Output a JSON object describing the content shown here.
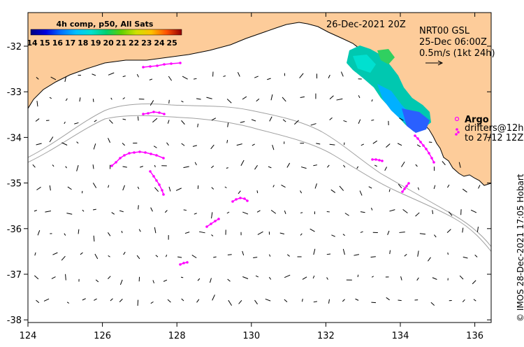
{
  "header": {
    "date": "26-Dec-2021 20Z",
    "product": "NRT00 GSL",
    "time": "25-Dec 06:00Z",
    "scale": "0.5m/s (1kt 24h)"
  },
  "colorbar": {
    "title": "4h comp, p50, All Sats",
    "labels": [
      "14",
      "15",
      "16",
      "17",
      "18",
      "19",
      "20",
      "21",
      "22",
      "23",
      "24",
      "25"
    ],
    "colors": [
      "#000080",
      "#0000d0",
      "#0060ff",
      "#00b0ff",
      "#00e0e0",
      "#00d080",
      "#40d000",
      "#b0e000",
      "#f0e000",
      "#ffa000",
      "#ff5000",
      "#d00000",
      "#800000"
    ]
  },
  "legend": {
    "argo_label": "Argo",
    "drifters_label": "drifters@12h",
    "to_label": "to 27/12 12Z"
  },
  "axes": {
    "lon_ticks": [
      "124",
      "126",
      "128",
      "130",
      "132",
      "134",
      "136"
    ],
    "lat_ticks": [
      "-32",
      "-33",
      "-34",
      "-35",
      "-36",
      "-37",
      "-38"
    ]
  },
  "credit": "© IMOS 28-Dec-2021 17:05 Hobart",
  "colors": {
    "land": "#fdcc9a",
    "drifter": "#ff00ff",
    "isobath": "#a0a0a0",
    "vector": "#000000"
  }
}
